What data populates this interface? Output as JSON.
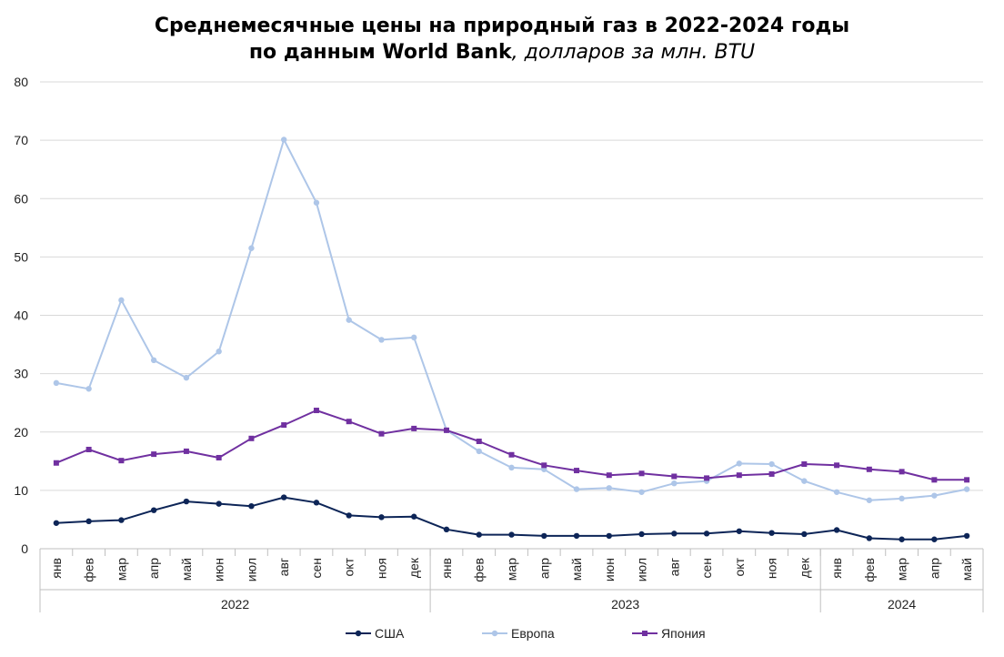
{
  "title_line1": "Среднемесячные цены на природный газ в 2022-2024 годы",
  "title_line2_bold": "по данным World Bank",
  "title_line2_italic": ", долларов за млн. BTU",
  "chart_data": {
    "type": "line",
    "ylim": [
      0,
      80
    ],
    "yticks": [
      0,
      10,
      20,
      30,
      40,
      50,
      60,
      70,
      80
    ],
    "grid": true,
    "legend_position": "bottom",
    "categories": [
      "янв",
      "фев",
      "мар",
      "апр",
      "май",
      "июн",
      "июл",
      "авг",
      "сен",
      "окт",
      "ноя",
      "дек",
      "янв",
      "фев",
      "мар",
      "апр",
      "май",
      "июн",
      "июл",
      "авг",
      "сен",
      "окт",
      "ноя",
      "дек",
      "янв",
      "фев",
      "мар",
      "апр",
      "май"
    ],
    "year_groups": [
      {
        "label": "2022",
        "count": 12
      },
      {
        "label": "2023",
        "count": 12
      },
      {
        "label": "2024",
        "count": 5
      }
    ],
    "series": [
      {
        "name": "США",
        "color": "#0d2557",
        "marker": "circle",
        "values": [
          4.4,
          4.7,
          4.9,
          6.6,
          8.1,
          7.7,
          7.3,
          8.8,
          7.9,
          5.7,
          5.4,
          5.5,
          3.3,
          2.4,
          2.4,
          2.2,
          2.2,
          2.2,
          2.5,
          2.6,
          2.6,
          3.0,
          2.7,
          2.5,
          3.2,
          1.8,
          1.6,
          1.6,
          2.2
        ]
      },
      {
        "name": "Европа",
        "color": "#aec6e8",
        "marker": "circle",
        "values": [
          28.4,
          27.4,
          42.6,
          32.3,
          29.3,
          33.8,
          51.5,
          70.1,
          59.3,
          39.2,
          35.8,
          36.2,
          20.3,
          16.7,
          13.9,
          13.6,
          10.2,
          10.4,
          9.7,
          11.2,
          11.6,
          14.6,
          14.5,
          11.6,
          9.7,
          8.3,
          8.6,
          9.1,
          10.2
        ]
      },
      {
        "name": "Япония",
        "color": "#7030a0",
        "marker": "square",
        "values": [
          14.7,
          17.0,
          15.1,
          16.2,
          16.7,
          15.6,
          18.9,
          21.2,
          23.7,
          21.8,
          19.7,
          20.6,
          20.3,
          18.4,
          16.1,
          14.3,
          13.4,
          12.6,
          12.9,
          12.4,
          12.1,
          12.6,
          12.8,
          14.5,
          14.3,
          13.6,
          13.2,
          11.8,
          11.8
        ]
      }
    ]
  }
}
